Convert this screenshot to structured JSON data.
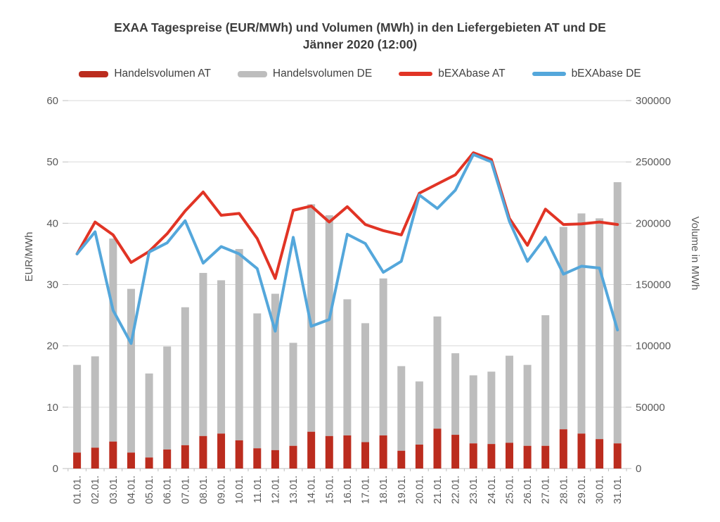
{
  "title": {
    "line1": "EXAA Tagespreise (EUR/MWh) und Volumen (MWh) in den Liefergebieten AT und DE",
    "line2": "Jänner 2020 (12:00)"
  },
  "legend": [
    {
      "label": "Handelsvolumen AT",
      "swatch": "bar",
      "color_key": "bar_at"
    },
    {
      "label": "Handelsvolumen DE",
      "swatch": "bar",
      "color_key": "bar_de"
    },
    {
      "label": "bEXAbase AT",
      "swatch": "line",
      "color_key": "line_at"
    },
    {
      "label": "bEXAbase DE",
      "swatch": "line",
      "color_key": "line_de"
    }
  ],
  "colors": {
    "bar_at": "#bb2c1e",
    "bar_de": "#bdbdbd",
    "line_at": "#e13425",
    "line_de": "#54a7db",
    "grid": "#d9d9d9",
    "axis": "#bfbfbf",
    "axis_text": "#595959",
    "title_text": "#3d3d3d"
  },
  "chart_data": {
    "type": "combo",
    "subtype": "stacked-bar-and-line",
    "title": "EXAA Tagespreise (EUR/MWh) und Volumen (MWh) in den Liefergebieten AT und DE Jänner 2020 (12:00)",
    "grid": true,
    "legend_position": "top",
    "categories": [
      "01.01.",
      "02.01.",
      "03.01.",
      "04.01.",
      "05.01.",
      "06.01.",
      "07.01.",
      "08.01.",
      "09.01.",
      "10.01.",
      "11.01.",
      "12.01.",
      "13.01.",
      "14.01.",
      "15.01.",
      "16.01.",
      "17.01.",
      "18.01.",
      "19.01.",
      "20.01.",
      "21.01.",
      "22.01.",
      "23.01.",
      "24.01.",
      "25.01.",
      "26.01.",
      "27.01.",
      "28.01.",
      "29.01.",
      "30.01.",
      "31.01."
    ],
    "left_axis": {
      "label": "EUR/MWh",
      "min": 0,
      "max": 60,
      "step": 10,
      "ticks": [
        0,
        10,
        20,
        30,
        40,
        50,
        60
      ]
    },
    "right_axis": {
      "label": "Volume in MWh",
      "min": 0,
      "max": 300000,
      "step": 50000,
      "ticks": [
        0,
        50000,
        100000,
        150000,
        200000,
        250000,
        300000
      ]
    },
    "series": [
      {
        "name": "Handelsvolumen AT",
        "type": "bar",
        "stack": "volume",
        "axis": "right",
        "color_key": "bar_at",
        "values": [
          13000,
          17000,
          22000,
          13000,
          9000,
          15500,
          19000,
          26500,
          28500,
          23000,
          16500,
          15000,
          18500,
          30000,
          26500,
          27000,
          21500,
          27000,
          14500,
          19500,
          32500,
          27500,
          20500,
          20000,
          21000,
          18500,
          18500,
          32000,
          28500,
          24000,
          20500
        ]
      },
      {
        "name": "Handelsvolumen DE",
        "type": "bar",
        "stack": "volume",
        "axis": "right",
        "color_key": "bar_de",
        "values": [
          71500,
          74500,
          165500,
          133500,
          68500,
          84000,
          112500,
          133000,
          125000,
          156000,
          110000,
          127500,
          84000,
          185500,
          180000,
          111000,
          97000,
          128000,
          69000,
          51500,
          91500,
          66500,
          55500,
          59000,
          71000,
          66000,
          106500,
          165000,
          179500,
          180000,
          213000
        ]
      },
      {
        "name": "bEXAbase AT",
        "type": "line",
        "axis": "left",
        "color_key": "line_at",
        "values": [
          35.0,
          40.2,
          38.1,
          33.6,
          35.4,
          38.3,
          42.0,
          45.1,
          41.3,
          41.6,
          37.5,
          31.0,
          42.1,
          42.8,
          40.2,
          42.7,
          39.8,
          38.8,
          38.1,
          44.9,
          46.4,
          47.9,
          51.5,
          50.4,
          40.8,
          36.4,
          42.3,
          39.8,
          39.9,
          40.2,
          39.8
        ]
      },
      {
        "name": "bEXAbase DE",
        "type": "line",
        "axis": "left",
        "color_key": "line_de",
        "values": [
          35.0,
          38.6,
          25.8,
          20.4,
          35.3,
          36.8,
          40.4,
          33.5,
          36.2,
          35.0,
          32.6,
          22.4,
          37.7,
          23.2,
          24.3,
          38.2,
          36.7,
          32.0,
          33.8,
          44.6,
          42.4,
          45.4,
          51.2,
          50.0,
          40.3,
          33.8,
          37.7,
          31.7,
          33.0,
          32.7,
          22.6
        ]
      }
    ]
  }
}
